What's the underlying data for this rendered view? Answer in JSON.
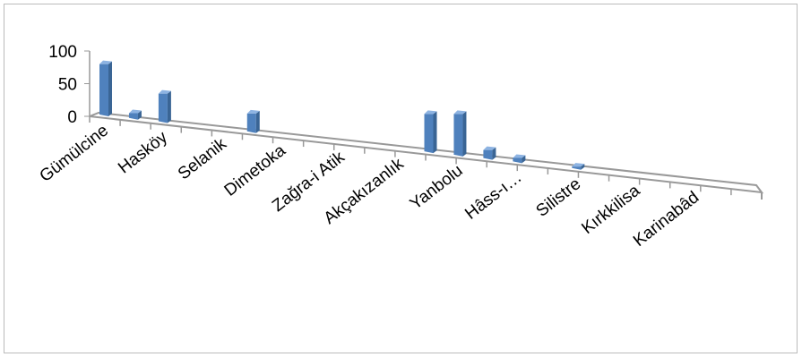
{
  "chart_data": {
    "type": "bar",
    "categories": [
      "Gümülcine",
      null,
      "Hasköy",
      null,
      "Selanik",
      null,
      "Dimetoka",
      null,
      "Zağra-i Atik",
      null,
      "Akçakızanlık",
      null,
      "Yanbolu",
      null,
      "Hâss-ı…",
      null,
      "Silistre",
      null,
      "Kırkkilisa",
      null,
      "Karinabâd",
      null
    ],
    "values": [
      80,
      10,
      45,
      0,
      0,
      30,
      0,
      0,
      0,
      0,
      0,
      60,
      65,
      15,
      8,
      0,
      5,
      0,
      0,
      0,
      0,
      0
    ],
    "color": "#4f81bd",
    "ylim": [
      0,
      100
    ],
    "yticks": [
      0,
      50,
      100
    ]
  }
}
